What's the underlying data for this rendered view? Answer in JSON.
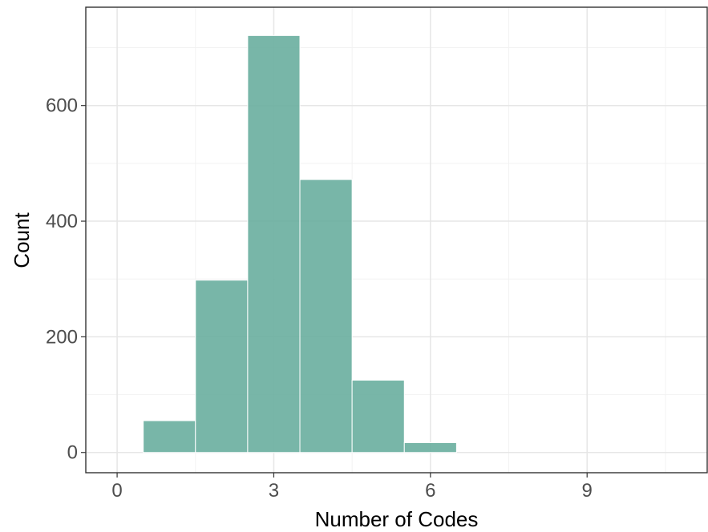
{
  "chart_data": {
    "type": "bar",
    "subtype": "histogram",
    "title": "",
    "xlabel": "Number of Codes",
    "ylabel": "Count",
    "xlim": [
      -0.6,
      11.3
    ],
    "ylim": [
      -35,
      770
    ],
    "x_ticks": [
      0,
      3,
      6,
      9
    ],
    "y_ticks": [
      0,
      200,
      400,
      600
    ],
    "bins": [
      {
        "x": 1,
        "count": 55
      },
      {
        "x": 2,
        "count": 298
      },
      {
        "x": 3,
        "count": 721
      },
      {
        "x": 4,
        "count": 472
      },
      {
        "x": 5,
        "count": 125
      },
      {
        "x": 6,
        "count": 17
      }
    ],
    "bin_width": 1,
    "bar_color": "#69ae9f",
    "grid": true,
    "theme": "bw"
  }
}
